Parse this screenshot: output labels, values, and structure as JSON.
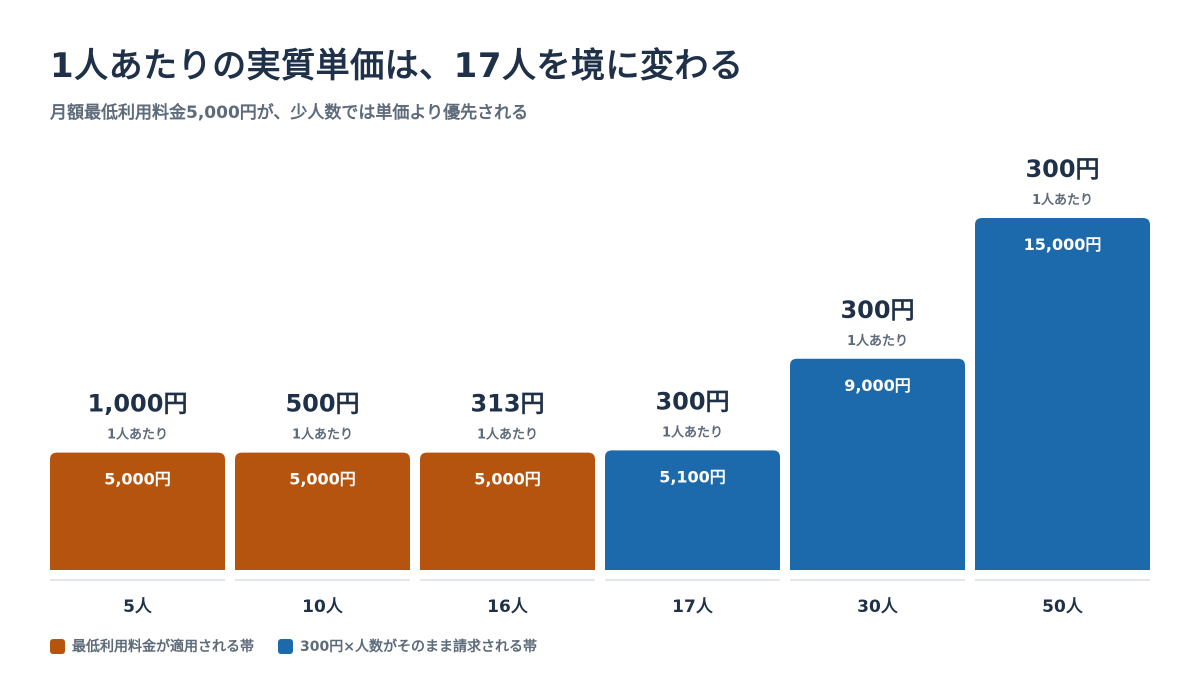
{
  "chart_data": {
    "type": "bar",
    "title": "1人あたりの実質単価は、17人を境に変わる",
    "subtitle": "月額最低利用料金5,000円が、少人数では単価より優先される",
    "categories": [
      "5人",
      "10人",
      "16人",
      "17人",
      "30人",
      "50人"
    ],
    "values": [
      5000,
      5000,
      5000,
      5100,
      9000,
      15000
    ],
    "value_labels": [
      "5,000円",
      "5,000円",
      "5,000円",
      "5,100円",
      "9,000円",
      "15,000円"
    ],
    "per_person_values": [
      1000,
      500,
      313,
      300,
      300,
      300
    ],
    "per_person_labels": [
      "1,000円",
      "500円",
      "313円",
      "300円",
      "300円",
      "300円"
    ],
    "per_person_caption": "1人あたり",
    "bands": [
      "minimum",
      "minimum",
      "minimum",
      "per_person",
      "per_person",
      "per_person"
    ],
    "ylim": [
      0,
      15000
    ],
    "grid": false,
    "legend_position": "bottom-left",
    "legend": [
      {
        "key": "minimum",
        "label": "最低利用料金が適用される帯",
        "color": "#b5540e"
      },
      {
        "key": "per_person",
        "label": "300円×人数がそのまま請求される帯",
        "color": "#1c6aab"
      }
    ]
  },
  "colors": {
    "title": "#1f3149",
    "subtitle": "#5e6b7a",
    "minimum_band": "#b5540e",
    "per_person_band": "#1c6aab",
    "baseline": "#e3e6ea"
  }
}
